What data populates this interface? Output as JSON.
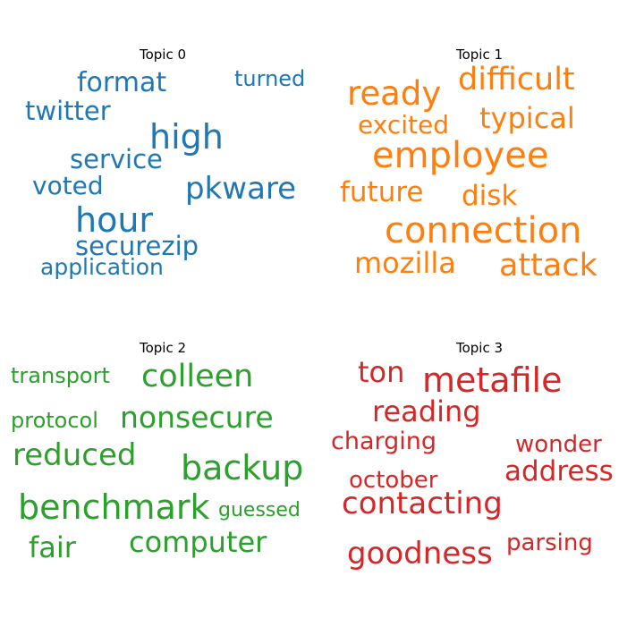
{
  "chart_data": [
    {
      "type": "wordcloud",
      "title": "Topic 0",
      "color": "#1f77b4",
      "words": [
        "high",
        "hour",
        "pkware",
        "format",
        "twitter",
        "service",
        "securezip",
        "voted",
        "application",
        "turned"
      ]
    },
    {
      "type": "wordcloud",
      "title": "Topic 1",
      "color": "#ff7f0e",
      "words": [
        "connection",
        "employee",
        "ready",
        "difficult",
        "attack",
        "mozilla",
        "typical",
        "future",
        "disk",
        "excited"
      ]
    },
    {
      "type": "wordcloud",
      "title": "Topic 2",
      "color": "#2ca02c",
      "words": [
        "benchmark",
        "backup",
        "nonsecure",
        "colleen",
        "reduced",
        "computer",
        "fair",
        "transport",
        "protocol",
        "guessed"
      ]
    },
    {
      "type": "wordcloud",
      "title": "Topic 3",
      "color": "#d62728",
      "words": [
        "metafile",
        "contacting",
        "goodness",
        "reading",
        "address",
        "ton",
        "charging",
        "october",
        "wonder",
        "parsing"
      ]
    }
  ]
}
